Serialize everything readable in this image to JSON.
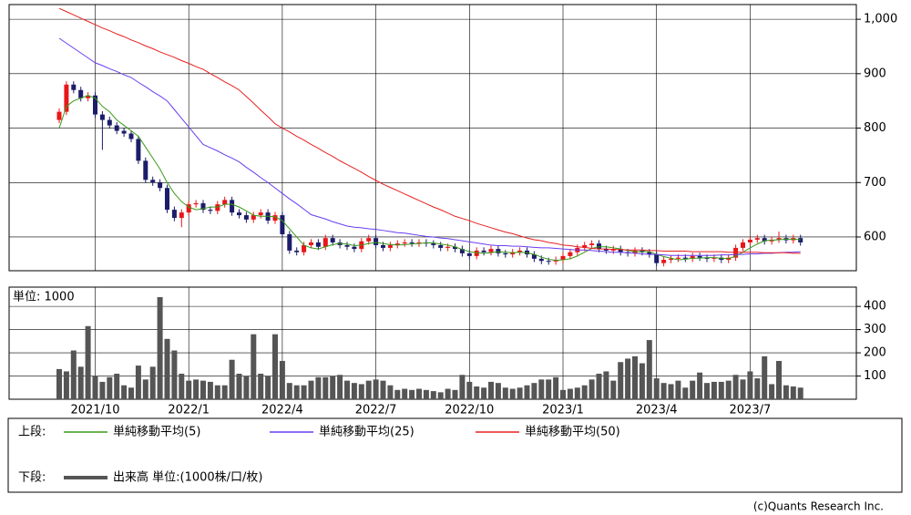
{
  "chart_data": [
    {
      "type": "candlestick",
      "legend_title": "上段:",
      "open": [
        815,
        830,
        880,
        870,
        855,
        860,
        825,
        815,
        805,
        795,
        790,
        780,
        740,
        705,
        700,
        690,
        650,
        635,
        645,
        660,
        662,
        650,
        648,
        660,
        668,
        645,
        640,
        632,
        640,
        645,
        630,
        640,
        605,
        575,
        572,
        585,
        590,
        582,
        598,
        590,
        585,
        582,
        578,
        592,
        598,
        585,
        580,
        585,
        588,
        590,
        588,
        590,
        588,
        585,
        580,
        582,
        578,
        570,
        565,
        575,
        572,
        578,
        570,
        568,
        572,
        575,
        568,
        560,
        556,
        555,
        558,
        565,
        572,
        580,
        585,
        588,
        578,
        575,
        578,
        572,
        570,
        575,
        572,
        568,
        552,
        558,
        560,
        562,
        560,
        565,
        562,
        560,
        562,
        558,
        562,
        580,
        590,
        595,
        598,
        592,
        595,
        598,
        594,
        598
      ],
      "high": [
        836,
        886,
        886,
        876,
        866,
        866,
        831,
        821,
        811,
        801,
        796,
        786,
        746,
        711,
        706,
        696,
        656,
        651,
        666,
        668,
        668,
        656,
        666,
        674,
        674,
        651,
        646,
        646,
        651,
        651,
        646,
        646,
        611,
        581,
        591,
        596,
        596,
        604,
        604,
        596,
        591,
        588,
        598,
        604,
        604,
        591,
        591,
        594,
        596,
        596,
        596,
        596,
        594,
        591,
        588,
        588,
        584,
        576,
        581,
        581,
        584,
        584,
        576,
        578,
        581,
        581,
        574,
        566,
        562,
        564,
        571,
        578,
        586,
        591,
        594,
        594,
        584,
        584,
        584,
        578,
        581,
        581,
        578,
        574,
        564,
        566,
        568,
        568,
        571,
        571,
        568,
        568,
        568,
        568,
        586,
        596,
        601,
        604,
        604,
        601,
        610,
        604,
        604,
        604
      ],
      "low": [
        809,
        824,
        864,
        849,
        849,
        819,
        760,
        799,
        789,
        784,
        774,
        734,
        699,
        694,
        684,
        644,
        629,
        618,
        639,
        654,
        644,
        642,
        642,
        654,
        639,
        634,
        626,
        626,
        634,
        624,
        624,
        599,
        569,
        566,
        566,
        579,
        576,
        576,
        584,
        579,
        576,
        572,
        572,
        586,
        579,
        574,
        574,
        579,
        582,
        582,
        582,
        582,
        579,
        574,
        574,
        572,
        564,
        559,
        559,
        566,
        566,
        564,
        562,
        562,
        566,
        562,
        554,
        550,
        549,
        549,
        552,
        559,
        566,
        574,
        579,
        572,
        569,
        569,
        566,
        564,
        564,
        566,
        562,
        546,
        546,
        552,
        554,
        554,
        554,
        556,
        554,
        554,
        552,
        552,
        556,
        574,
        584,
        589,
        586,
        586,
        589,
        588,
        588,
        584
      ],
      "close": [
        830,
        880,
        870,
        855,
        860,
        825,
        815,
        805,
        795,
        790,
        780,
        740,
        705,
        700,
        690,
        650,
        635,
        645,
        660,
        662,
        650,
        648,
        660,
        668,
        645,
        640,
        632,
        640,
        645,
        630,
        640,
        605,
        575,
        572,
        585,
        590,
        582,
        598,
        590,
        585,
        582,
        578,
        592,
        598,
        585,
        580,
        585,
        588,
        590,
        588,
        590,
        588,
        585,
        580,
        582,
        578,
        570,
        565,
        575,
        572,
        578,
        570,
        568,
        572,
        575,
        568,
        560,
        556,
        555,
        558,
        565,
        572,
        580,
        585,
        588,
        578,
        575,
        578,
        572,
        570,
        575,
        572,
        568,
        552,
        558,
        560,
        562,
        560,
        565,
        562,
        560,
        562,
        558,
        562,
        580,
        590,
        595,
        598,
        592,
        595,
        598,
        594,
        598,
        590
      ],
      "up_color": "#e8161a",
      "down_color": "#1c1c6b",
      "series": [
        {
          "name": "単純移動平均(5)",
          "color": "#3a9a1a",
          "values": [
            800,
            840,
            850,
            855,
            860,
            855,
            840,
            830,
            815,
            805,
            795,
            785,
            765,
            745,
            725,
            700,
            680,
            665,
            655,
            650,
            652,
            655,
            655,
            660,
            660,
            655,
            648,
            640,
            638,
            638,
            637,
            630,
            615,
            600,
            585,
            580,
            578,
            582,
            586,
            588,
            587,
            584,
            585,
            588,
            590,
            588,
            586,
            585,
            586,
            587,
            588,
            589,
            589,
            587,
            585,
            582,
            577,
            573,
            571,
            570,
            571,
            573,
            572,
            571,
            572,
            571,
            568,
            563,
            559,
            557,
            558,
            560,
            565,
            572,
            579,
            582,
            582,
            580,
            578,
            575,
            573,
            573,
            573,
            568,
            564,
            561,
            558,
            559,
            561,
            561,
            562,
            562,
            561,
            560,
            565,
            572,
            580,
            587,
            593,
            594,
            595,
            596,
            596,
            595
          ]
        },
        {
          "name": "単純移動平均(25)",
          "color": "#6a3df0",
          "values": [
            965,
            956,
            947,
            938,
            929,
            920,
            915,
            909,
            904,
            898,
            893,
            884,
            876,
            867,
            859,
            850,
            834,
            818,
            802,
            786,
            770,
            764,
            758,
            751,
            745,
            738,
            728,
            719,
            709,
            700,
            690,
            680,
            670,
            661,
            651,
            641,
            637,
            633,
            628,
            624,
            620,
            618,
            617,
            615,
            614,
            612,
            610,
            608,
            607,
            605,
            603,
            601,
            600,
            598,
            597,
            595,
            593,
            591,
            589,
            587,
            585,
            584,
            584,
            583,
            583,
            582,
            581,
            580,
            580,
            579,
            578,
            577,
            576,
            576,
            575,
            574,
            573,
            572,
            572,
            571,
            570,
            569,
            568,
            568,
            567,
            566,
            566,
            566,
            566,
            566,
            566,
            566,
            567,
            567,
            568,
            568,
            569,
            569,
            570,
            570,
            571,
            572,
            572,
            573
          ]
        },
        {
          "name": "単純移動平均(50)",
          "color": "#e82020",
          "values": [
            1020,
            1014,
            1008,
            1002,
            996,
            990,
            984,
            979,
            973,
            968,
            962,
            957,
            951,
            946,
            940,
            935,
            930,
            924,
            919,
            913,
            908,
            900,
            893,
            885,
            878,
            870,
            858,
            846,
            833,
            821,
            808,
            800,
            793,
            785,
            778,
            770,
            763,
            755,
            748,
            740,
            733,
            726,
            719,
            711,
            704,
            697,
            691,
            685,
            679,
            673,
            667,
            661,
            655,
            650,
            644,
            638,
            634,
            630,
            625,
            621,
            617,
            613,
            609,
            606,
            602,
            598,
            595,
            593,
            590,
            588,
            585,
            584,
            582,
            581,
            579,
            578,
            578,
            577,
            577,
            576,
            576,
            576,
            575,
            575,
            574,
            574,
            574,
            574,
            573,
            573,
            573,
            573,
            573,
            572,
            572,
            572,
            572,
            572,
            571,
            571,
            571,
            571,
            570,
            570
          ]
        }
      ],
      "ylim": [
        538,
        1027
      ],
      "yticks": [
        600,
        700,
        800,
        900,
        {
          "value": 1000,
          "label": "1,000"
        }
      ],
      "grid": true
    },
    {
      "type": "bar",
      "legend_title": "下段:",
      "axis_label": "単位: 1000",
      "categories": [
        null,
        null,
        null,
        null,
        null,
        "2021/10",
        null,
        null,
        null,
        null,
        null,
        null,
        null,
        null,
        null,
        null,
        null,
        null,
        "2022/1",
        null,
        null,
        null,
        null,
        null,
        null,
        null,
        null,
        null,
        null,
        null,
        null,
        "2022/4",
        null,
        null,
        null,
        null,
        null,
        null,
        null,
        null,
        null,
        null,
        null,
        null,
        "2022/7",
        null,
        null,
        null,
        null,
        null,
        null,
        null,
        null,
        null,
        null,
        null,
        null,
        "2022/10",
        null,
        null,
        null,
        null,
        null,
        null,
        null,
        null,
        null,
        null,
        null,
        null,
        "2023/1",
        null,
        null,
        null,
        null,
        null,
        null,
        null,
        null,
        null,
        null,
        null,
        null,
        "2023/4",
        null,
        null,
        null,
        null,
        null,
        null,
        null,
        null,
        null,
        null,
        null,
        null,
        "2023/7",
        null,
        null,
        null,
        null,
        null,
        null,
        null
      ],
      "series": [
        {
          "name": "出来高 単位:(1000株/口/枚)",
          "color": "#555555",
          "values": [
            130,
            120,
            210,
            140,
            315,
            100,
            75,
            95,
            110,
            60,
            50,
            145,
            85,
            140,
            440,
            260,
            210,
            110,
            80,
            85,
            80,
            75,
            60,
            60,
            170,
            110,
            100,
            280,
            110,
            100,
            280,
            165,
            70,
            60,
            60,
            80,
            95,
            95,
            100,
            105,
            80,
            70,
            65,
            80,
            85,
            80,
            60,
            40,
            45,
            40,
            45,
            40,
            35,
            30,
            45,
            40,
            105,
            75,
            55,
            50,
            75,
            70,
            50,
            45,
            50,
            60,
            70,
            85,
            85,
            95,
            40,
            45,
            50,
            60,
            85,
            110,
            120,
            80,
            160,
            175,
            185,
            155,
            255,
            90,
            70,
            65,
            80,
            50,
            80,
            115,
            70,
            75,
            75,
            80,
            105,
            85,
            120,
            90,
            185,
            65,
            165,
            60,
            55,
            50
          ]
        }
      ],
      "ylim": [
        0,
        483
      ],
      "yticks": [
        100,
        200,
        300,
        400
      ],
      "grid": true
    }
  ],
  "credit": "(c)Quants Research Inc."
}
